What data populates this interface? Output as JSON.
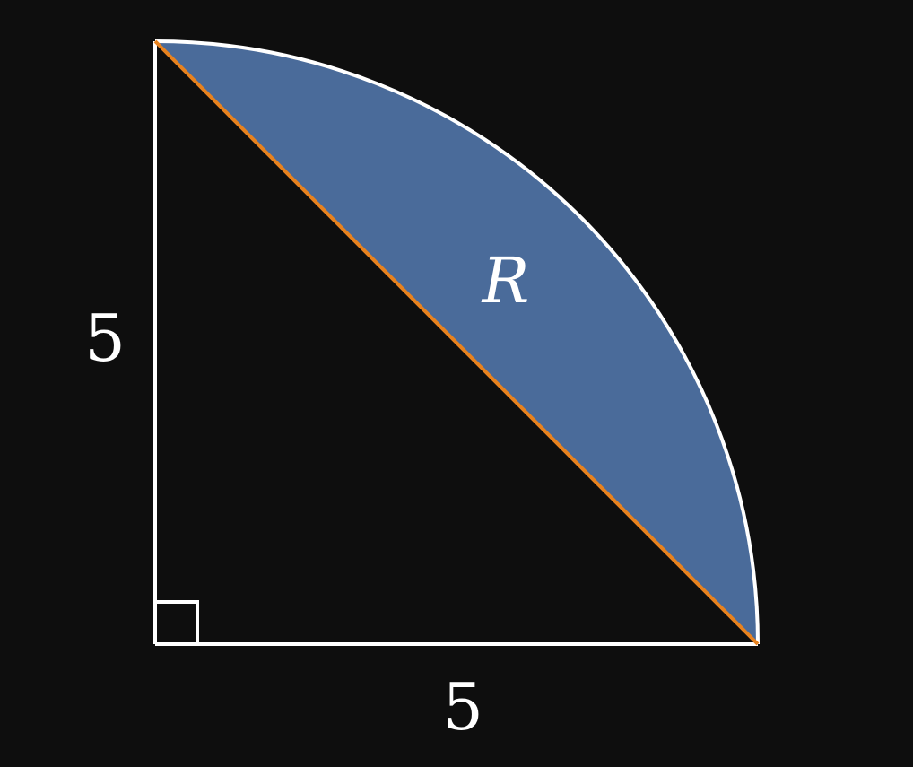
{
  "diagram": {
    "labels": {
      "vertical_side": "5",
      "horizontal_side": "5",
      "region": "R"
    },
    "colors": {
      "background": "#0e0e0e",
      "region_fill": "#4a6b9a",
      "outline": "#ffffff",
      "chord": "#e8821e"
    }
  }
}
